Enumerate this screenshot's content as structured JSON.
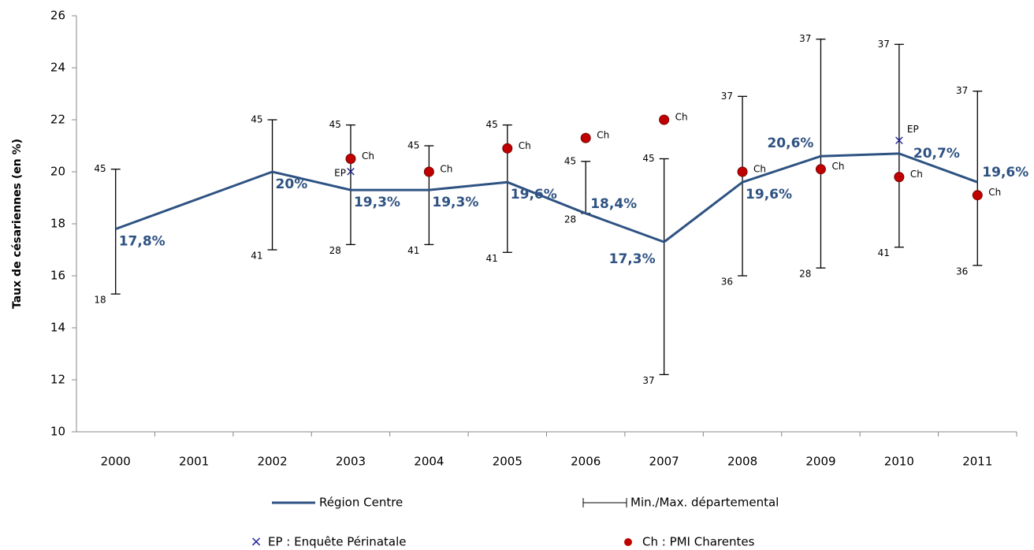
{
  "chart_data": {
    "type": "line",
    "y_label": "Taux de césariennes (en %)",
    "categories": [
      "2000",
      "2001",
      "2002",
      "2003",
      "2004",
      "2005",
      "2006",
      "2007",
      "2008",
      "2009",
      "2010",
      "2011"
    ],
    "ylim": [
      10,
      26
    ],
    "yticks": [
      10,
      12,
      14,
      16,
      18,
      20,
      22,
      24,
      26
    ],
    "connect_gaps": true,
    "series": [
      {
        "name": "Région Centre",
        "color": "#2e5282",
        "values": [
          17.8,
          null,
          20,
          19.3,
          19.3,
          19.6,
          18.4,
          17.3,
          19.6,
          20.6,
          20.7,
          19.6
        ],
        "value_labels": [
          "17,8%",
          null,
          "20%",
          "19,3%",
          "19,3%",
          "19,6%",
          "18,4%",
          "17,3%",
          "19,6%",
          "20,6%",
          "20,7%",
          "19,6%"
        ]
      },
      {
        "name": "EP : Enquête Périnatale",
        "color": "#1f1f9a",
        "marker": "x",
        "values": [
          null,
          null,
          null,
          20,
          null,
          null,
          null,
          null,
          null,
          null,
          21.2,
          null
        ],
        "point_labels": [
          null,
          null,
          null,
          "EP",
          null,
          null,
          null,
          null,
          null,
          null,
          "EP",
          null
        ]
      },
      {
        "name": "Ch : PMI Charentes",
        "color": "#c00000",
        "marker": "circle",
        "values": [
          null,
          null,
          null,
          20.5,
          20,
          20.9,
          21.3,
          22,
          20,
          20.1,
          19.8,
          19.1
        ],
        "point_labels": [
          null,
          null,
          null,
          "Ch",
          "Ch",
          "Ch",
          "Ch",
          "Ch",
          "Ch",
          "Ch",
          "Ch",
          "Ch"
        ]
      }
    ],
    "range": {
      "name": "Min./Max. départemental",
      "color": "#000000",
      "max": [
        20.1,
        null,
        22,
        21.8,
        21,
        21.8,
        20.4,
        20.5,
        22.9,
        25.1,
        24.9,
        23.1
      ],
      "min": [
        15.3,
        null,
        17,
        17.2,
        17.2,
        16.9,
        18.4,
        12.2,
        16,
        16.3,
        17.1,
        16.4
      ],
      "max_labels": [
        "45",
        null,
        "45",
        "45",
        "45",
        "45",
        "45",
        "45",
        "37",
        "37",
        "37",
        "37"
      ],
      "min_labels": [
        "18",
        null,
        "41",
        "28",
        "41",
        "41",
        "28",
        "37",
        "36",
        "28",
        "41",
        "36"
      ]
    }
  }
}
